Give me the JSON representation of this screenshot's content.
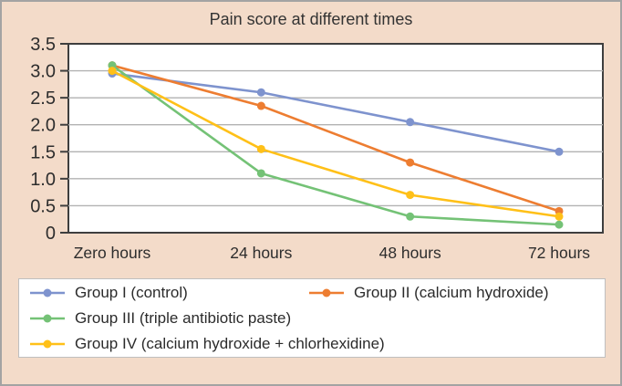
{
  "title": "Pain score at different times",
  "chart_data": {
    "type": "line",
    "title": "Pain score at different times",
    "categories": [
      "Zero hours",
      "24 hours",
      "48 hours",
      "72 hours"
    ],
    "series": [
      {
        "name": "Group I (control)",
        "color": "#7e93ce",
        "values": [
          2.95,
          2.6,
          2.05,
          1.5
        ]
      },
      {
        "name": "Group II (calcium hydroxide)",
        "color": "#ed7d31",
        "values": [
          3.1,
          2.35,
          1.3,
          0.4
        ]
      },
      {
        "name": "Group III (triple antibiotic paste)",
        "color": "#74c276",
        "values": [
          3.1,
          1.1,
          0.3,
          0.15
        ]
      },
      {
        "name": "Group IV (calcium hydroxide + chlorhexidine)",
        "color": "#ffc018",
        "values": [
          3.0,
          1.55,
          0.7,
          0.3
        ]
      }
    ],
    "ylim": [
      0,
      3.5
    ],
    "ytick_step": 0.5,
    "ytick_labels": [
      "0",
      "0.5",
      "1.0",
      "1.5",
      "2.0",
      "2.5",
      "3.0",
      "3.5"
    ],
    "grid": "horizontal-only",
    "legend_position": "bottom",
    "legend_marker": "line-with-dot"
  },
  "colors": {
    "figure_background": "#f3dbc9",
    "figure_border": "#a3a3a3",
    "plot_background": "#ffffff",
    "plot_border": "#3e3e3e",
    "gridline": "#b2b2b2",
    "text": "#2d2d2d",
    "legend_border": "#bfbfbf",
    "legend_background": "#ffffff"
  }
}
